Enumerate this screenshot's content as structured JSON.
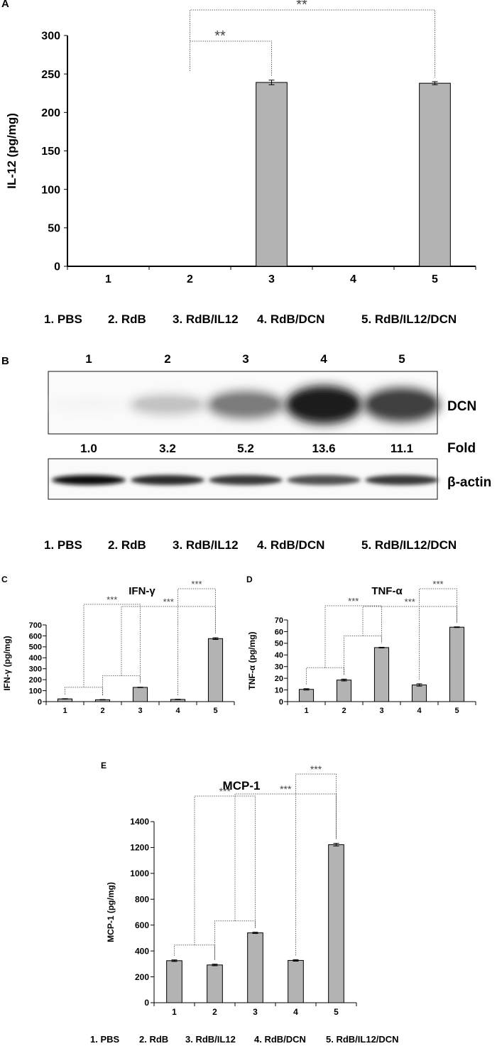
{
  "panel_labels": {
    "a": "A",
    "b": "B",
    "c": "C",
    "d": "D",
    "e": "E"
  },
  "legend_items": [
    "1. PBS",
    "2. RdB",
    "3. RdB/IL12",
    "4. RdB/DCN",
    "5. RdB/IL12/DCN"
  ],
  "legend_items_e": [
    "1. PBS",
    "2. RdB",
    "3. RdB/IL12",
    "4. RdB/DCN",
    "5. RdB/IL12/DCN"
  ],
  "blot": {
    "lane_labels": [
      "1",
      "2",
      "3",
      "4",
      "5"
    ],
    "dcn_label": "DCN",
    "fold_label": "Fold",
    "actin_label": "β-actin",
    "fold_values": [
      "1.0",
      "3.2",
      "5.2",
      "13.6",
      "11.1"
    ],
    "dcn_intensity": [
      0.04,
      0.25,
      0.55,
      0.95,
      0.8
    ],
    "actin_intensity": [
      0.95,
      0.85,
      0.8,
      0.7,
      0.8
    ]
  },
  "chart_data": [
    {
      "panel": "A",
      "type": "bar",
      "title": "",
      "xlabel": "",
      "ylabel": "IL-12 (pg/mg)",
      "categories": [
        "1",
        "2",
        "3",
        "4",
        "5"
      ],
      "values": [
        0,
        0,
        239,
        0,
        238
      ],
      "errors": [
        0,
        0,
        3,
        0,
        2
      ],
      "ylim": [
        0,
        300
      ],
      "yticks": [
        0,
        50,
        100,
        150,
        200,
        250,
        300
      ],
      "bar_color": "#b3b3b3",
      "significance": [
        {
          "from": "2",
          "to": "3",
          "label": "**"
        },
        {
          "from": "2",
          "to": "5",
          "label": "**"
        }
      ]
    },
    {
      "panel": "C",
      "type": "bar",
      "title": "IFN-γ",
      "xlabel": "",
      "ylabel": "IFN-γ (pg/mg)",
      "categories": [
        "1",
        "2",
        "3",
        "4",
        "5"
      ],
      "values": [
        25,
        17,
        130,
        20,
        575
      ],
      "errors": [
        2,
        2,
        2,
        2,
        8
      ],
      "ylim": [
        0,
        700
      ],
      "yticks": [
        0,
        100,
        200,
        300,
        400,
        500,
        600,
        700
      ],
      "bar_color": "#b3b3b3",
      "significance": [
        {
          "from": "1-2",
          "to": "3",
          "label": "***"
        },
        {
          "from": "4",
          "to": "5",
          "label": "***"
        },
        {
          "from": "2-3",
          "to": "5",
          "label": "***"
        }
      ]
    },
    {
      "panel": "D",
      "type": "bar",
      "title": "TNF-α",
      "xlabel": "",
      "ylabel": "TNF-α (pg/mg)",
      "categories": [
        "1",
        "2",
        "3",
        "4",
        "5"
      ],
      "values": [
        10.5,
        18.5,
        46.3,
        14.3,
        63.8
      ],
      "errors": [
        0.6,
        0.8,
        0.3,
        1.0,
        0.3
      ],
      "ylim": [
        0,
        70
      ],
      "yticks": [
        0,
        10,
        20,
        30,
        40,
        50,
        60,
        70
      ],
      "bar_color": "#b3b3b3",
      "significance": [
        {
          "from": "1-2",
          "to": "3",
          "label": "***"
        },
        {
          "from": "4",
          "to": "5",
          "label": "***"
        },
        {
          "from": "2-3",
          "to": "5",
          "label": "***"
        }
      ]
    },
    {
      "panel": "E",
      "type": "bar",
      "title": "MCP-1",
      "xlabel": "",
      "ylabel": "MCP-1 (pg/mg)",
      "categories": [
        "1",
        "2",
        "3",
        "4",
        "5"
      ],
      "values": [
        325,
        292,
        540,
        327,
        1222
      ],
      "errors": [
        6,
        6,
        5,
        6,
        10
      ],
      "ylim": [
        0,
        1400
      ],
      "yticks": [
        0,
        200,
        400,
        600,
        800,
        1000,
        1200,
        1400
      ],
      "bar_color": "#b3b3b3",
      "significance": [
        {
          "from": "1-2",
          "to": "3",
          "label": "***"
        },
        {
          "from": "4",
          "to": "5",
          "label": "***"
        },
        {
          "from": "2-3",
          "to": "5",
          "label": "***"
        }
      ]
    }
  ]
}
